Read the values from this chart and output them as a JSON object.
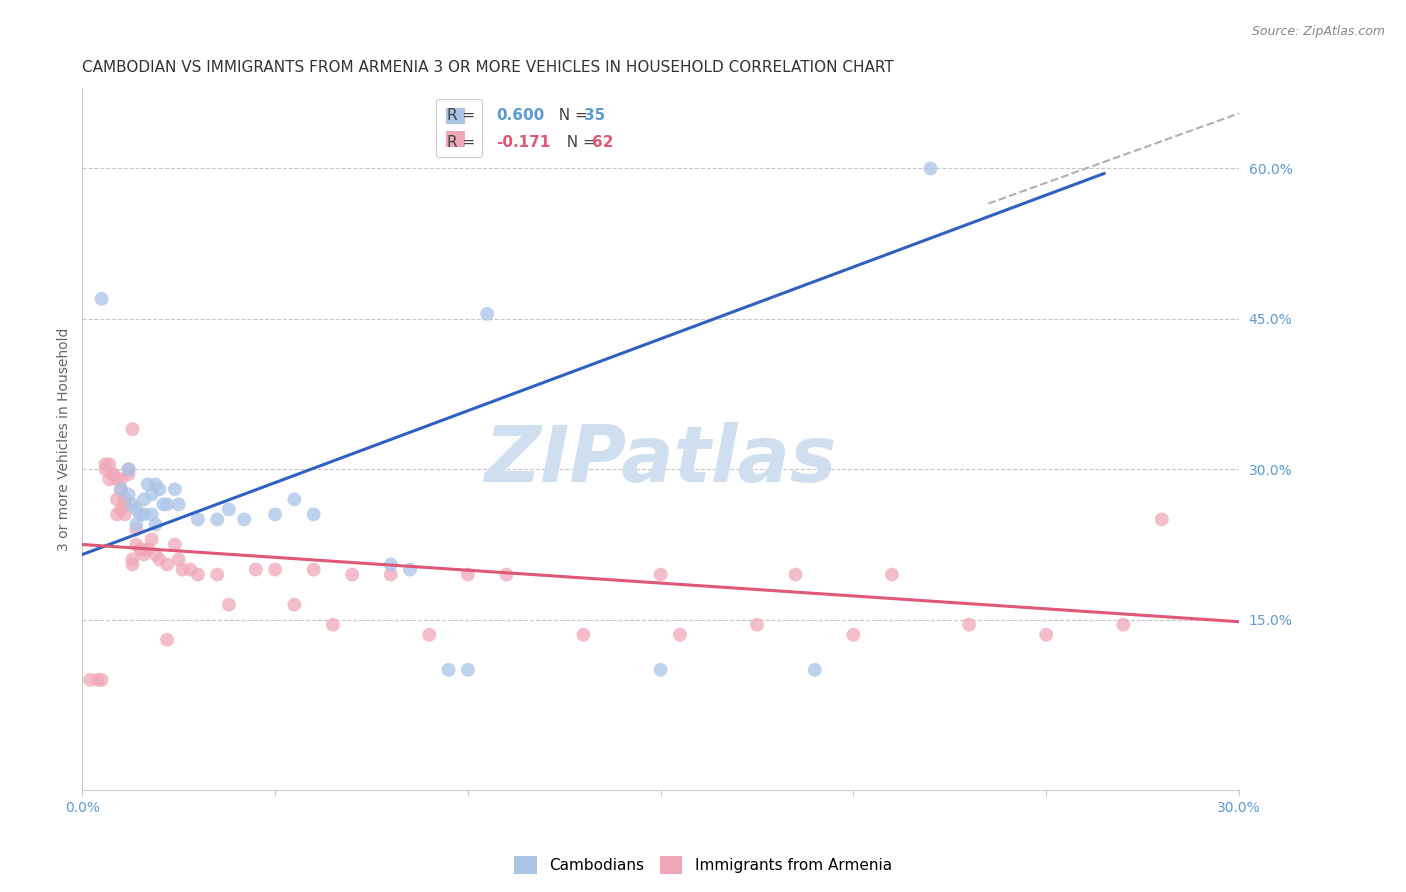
{
  "title": "CAMBODIAN VS IMMIGRANTS FROM ARMENIA 3 OR MORE VEHICLES IN HOUSEHOLD CORRELATION CHART",
  "source": "Source: ZipAtlas.com",
  "ylabel": "3 or more Vehicles in Household",
  "xlim": [
    0.0,
    0.3
  ],
  "ylim": [
    -0.02,
    0.68
  ],
  "xticks": [
    0.0,
    0.05,
    0.1,
    0.15,
    0.2,
    0.25,
    0.3
  ],
  "xticklabels": [
    "0.0%",
    "",
    "",
    "",
    "",
    "",
    "30.0%"
  ],
  "yticks_right": [
    0.15,
    0.3,
    0.45,
    0.6
  ],
  "ytick_right_labels": [
    "15.0%",
    "30.0%",
    "45.0%",
    "60.0%"
  ],
  "right_axis_color": "#5b9bd5",
  "grid_color": "#c8c8c8",
  "watermark": "ZIPatlas",
  "watermark_color": "#d0dff0",
  "cambodian_color": "#aac4e8",
  "armenia_color": "#f0a8b8",
  "cambodian_line_color": "#3060c0",
  "armenia_line_color": "#e05878",
  "dashed_line_color": "#b0b0b0",
  "blue_trend_x": [
    0.0,
    0.265
  ],
  "blue_trend_y": [
    0.215,
    0.595
  ],
  "dashed_trend_x": [
    0.235,
    0.3
  ],
  "dashed_trend_y": [
    0.565,
    0.655
  ],
  "pink_trend_x": [
    0.0,
    0.3
  ],
  "pink_trend_y": [
    0.225,
    0.148
  ],
  "cambodian_points_x": [
    0.005,
    0.01,
    0.012,
    0.012,
    0.013,
    0.014,
    0.014,
    0.015,
    0.016,
    0.016,
    0.017,
    0.018,
    0.018,
    0.019,
    0.019,
    0.02,
    0.021,
    0.022,
    0.024,
    0.025,
    0.03,
    0.035,
    0.038,
    0.042,
    0.05,
    0.055,
    0.06,
    0.08,
    0.085,
    0.095,
    0.1,
    0.105,
    0.15,
    0.19,
    0.22
  ],
  "cambodian_points_y": [
    0.47,
    0.28,
    0.3,
    0.275,
    0.265,
    0.26,
    0.245,
    0.255,
    0.255,
    0.27,
    0.285,
    0.275,
    0.255,
    0.285,
    0.245,
    0.28,
    0.265,
    0.265,
    0.28,
    0.265,
    0.25,
    0.25,
    0.26,
    0.25,
    0.255,
    0.27,
    0.255,
    0.205,
    0.2,
    0.1,
    0.1,
    0.455,
    0.1,
    0.1,
    0.6
  ],
  "armenia_points_x": [
    0.002,
    0.004,
    0.005,
    0.006,
    0.006,
    0.007,
    0.007,
    0.008,
    0.008,
    0.009,
    0.009,
    0.009,
    0.01,
    0.01,
    0.01,
    0.011,
    0.011,
    0.011,
    0.012,
    0.012,
    0.013,
    0.013,
    0.013,
    0.014,
    0.014,
    0.015,
    0.016,
    0.016,
    0.017,
    0.018,
    0.019,
    0.02,
    0.022,
    0.022,
    0.024,
    0.025,
    0.026,
    0.028,
    0.03,
    0.035,
    0.038,
    0.045,
    0.05,
    0.055,
    0.06,
    0.065,
    0.07,
    0.08,
    0.09,
    0.1,
    0.11,
    0.13,
    0.15,
    0.155,
    0.175,
    0.185,
    0.2,
    0.21,
    0.23,
    0.25,
    0.27,
    0.28
  ],
  "armenia_points_y": [
    0.09,
    0.09,
    0.09,
    0.305,
    0.3,
    0.29,
    0.305,
    0.295,
    0.295,
    0.29,
    0.27,
    0.255,
    0.29,
    0.28,
    0.26,
    0.27,
    0.265,
    0.255,
    0.3,
    0.295,
    0.21,
    0.205,
    0.34,
    0.24,
    0.225,
    0.22,
    0.215,
    0.22,
    0.22,
    0.23,
    0.215,
    0.21,
    0.205,
    0.13,
    0.225,
    0.21,
    0.2,
    0.2,
    0.195,
    0.195,
    0.165,
    0.2,
    0.2,
    0.165,
    0.2,
    0.145,
    0.195,
    0.195,
    0.135,
    0.195,
    0.195,
    0.135,
    0.195,
    0.135,
    0.145,
    0.195,
    0.135,
    0.195,
    0.145,
    0.135,
    0.145,
    0.25
  ],
  "background_color": "#ffffff",
  "title_fontsize": 11,
  "axis_label_fontsize": 10,
  "tick_fontsize": 10,
  "legend_fontsize": 11,
  "marker_size": 100,
  "marker_alpha": 0.75
}
